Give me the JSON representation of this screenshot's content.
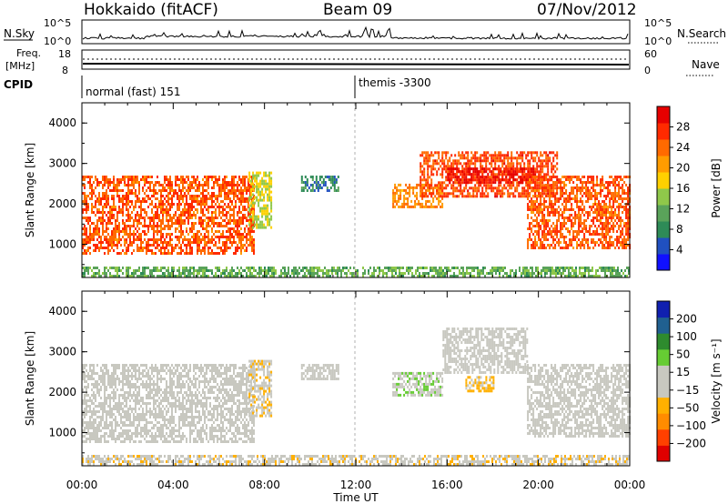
{
  "header": {
    "station": "Hokkaido (fitACF)",
    "beam": "Beam 09",
    "date": "07/Nov/2012"
  },
  "status_panels": {
    "nsky_label": "N.Sky",
    "nsky_ticks": [
      "10^5",
      "10^0"
    ],
    "nsearch_label": "N.Search",
    "freq_label_line1": "Freq.",
    "freq_label_line2": "[MHz]",
    "freq_ticks": [
      "18",
      "8"
    ],
    "nave_label": "Nave",
    "nave_ticks": [
      "60",
      "0"
    ],
    "cpid_label": "CPID",
    "cpid_modes": [
      {
        "name": "normal (fast) 151",
        "start": 0,
        "end": 12
      },
      {
        "name": "themis -3300",
        "start": 12,
        "end": 24
      }
    ]
  },
  "chart_data": [
    {
      "type": "heatmap",
      "name": "power",
      "ylabel": "Slant Range [km]",
      "ylim": [
        180,
        4500
      ],
      "yticks": [
        1000,
        2000,
        3000,
        4000
      ],
      "xlim": [
        0,
        24
      ],
      "x_unit": "hours UT",
      "colorbar": {
        "label": "Power [dB]",
        "range": [
          0,
          32
        ],
        "ticks": [
          4,
          8,
          12,
          16,
          20,
          24,
          28
        ],
        "colors": [
          "#1010ff",
          "#2050c0",
          "#2e8b57",
          "#5aa35a",
          "#8fc84a",
          "#ffd000",
          "#ff9c00",
          "#ff6a00",
          "#ff2a00",
          "#e60000"
        ]
      },
      "echo_regions": [
        {
          "t0": 0.0,
          "t1": 7.5,
          "r0": 800,
          "r1": 2700,
          "level": 25
        },
        {
          "t0": 7.3,
          "t1": 8.3,
          "r0": 1400,
          "r1": 2800,
          "level": 16
        },
        {
          "t0": 9.6,
          "t1": 11.2,
          "r0": 2300,
          "r1": 2700,
          "level": 8
        },
        {
          "t0": 13.6,
          "t1": 15.8,
          "r0": 1900,
          "r1": 2500,
          "level": 22
        },
        {
          "t0": 14.8,
          "t1": 20.8,
          "r0": 2200,
          "r1": 3300,
          "level": 26
        },
        {
          "t0": 16.0,
          "t1": 19.8,
          "r0": 2500,
          "r1": 2900,
          "level": 30
        },
        {
          "t0": 19.5,
          "t1": 24.0,
          "r0": 900,
          "r1": 2700,
          "level": 25
        },
        {
          "t0": 0.0,
          "t1": 24.0,
          "r0": 200,
          "r1": 450,
          "level": 12
        }
      ]
    },
    {
      "type": "heatmap",
      "name": "velocity",
      "ylabel": "Slant Range [km]",
      "ylim": [
        180,
        4500
      ],
      "yticks": [
        1000,
        2000,
        3000,
        4000
      ],
      "xlim": [
        0,
        24
      ],
      "x_unit": "hours UT",
      "colorbar": {
        "label": "Velocity [m s⁻¹]",
        "range": [
          -250,
          250
        ],
        "ticks": [
          200,
          100,
          50,
          15,
          -15,
          -50,
          -100,
          -200
        ],
        "colors": [
          "#e00000",
          "#ff4000",
          "#ff8c00",
          "#ffb000",
          "#c8c8c0",
          "#c8c8c0",
          "#66cc33",
          "#2e8b2e",
          "#206090",
          "#1020b0"
        ]
      },
      "echo_regions": [
        {
          "t0": 0.0,
          "t1": 7.5,
          "r0": 800,
          "r1": 2700,
          "level": 0
        },
        {
          "t0": 7.3,
          "t1": 8.3,
          "r0": 1400,
          "r1": 2800,
          "level": -40
        },
        {
          "t0": 9.6,
          "t1": 11.2,
          "r0": 2300,
          "r1": 2700,
          "level": -30
        },
        {
          "t0": 13.6,
          "t1": 15.8,
          "r0": 1900,
          "r1": 2500,
          "level": 40
        },
        {
          "t0": 15.8,
          "t1": 19.5,
          "r0": 2500,
          "r1": 3600,
          "level": 0
        },
        {
          "t0": 16.8,
          "t1": 18.0,
          "r0": 2000,
          "r1": 2400,
          "level": -60
        },
        {
          "t0": 19.5,
          "t1": 24.0,
          "r0": 900,
          "r1": 2700,
          "level": 0
        },
        {
          "t0": 0.0,
          "t1": 24.0,
          "r0": 200,
          "r1": 450,
          "level": -40
        }
      ]
    }
  ],
  "x_axis": {
    "ticks": [
      "00:00",
      "04:00",
      "08:00",
      "12:00",
      "16:00",
      "20:00",
      "00:00"
    ],
    "label": "Time UT"
  }
}
